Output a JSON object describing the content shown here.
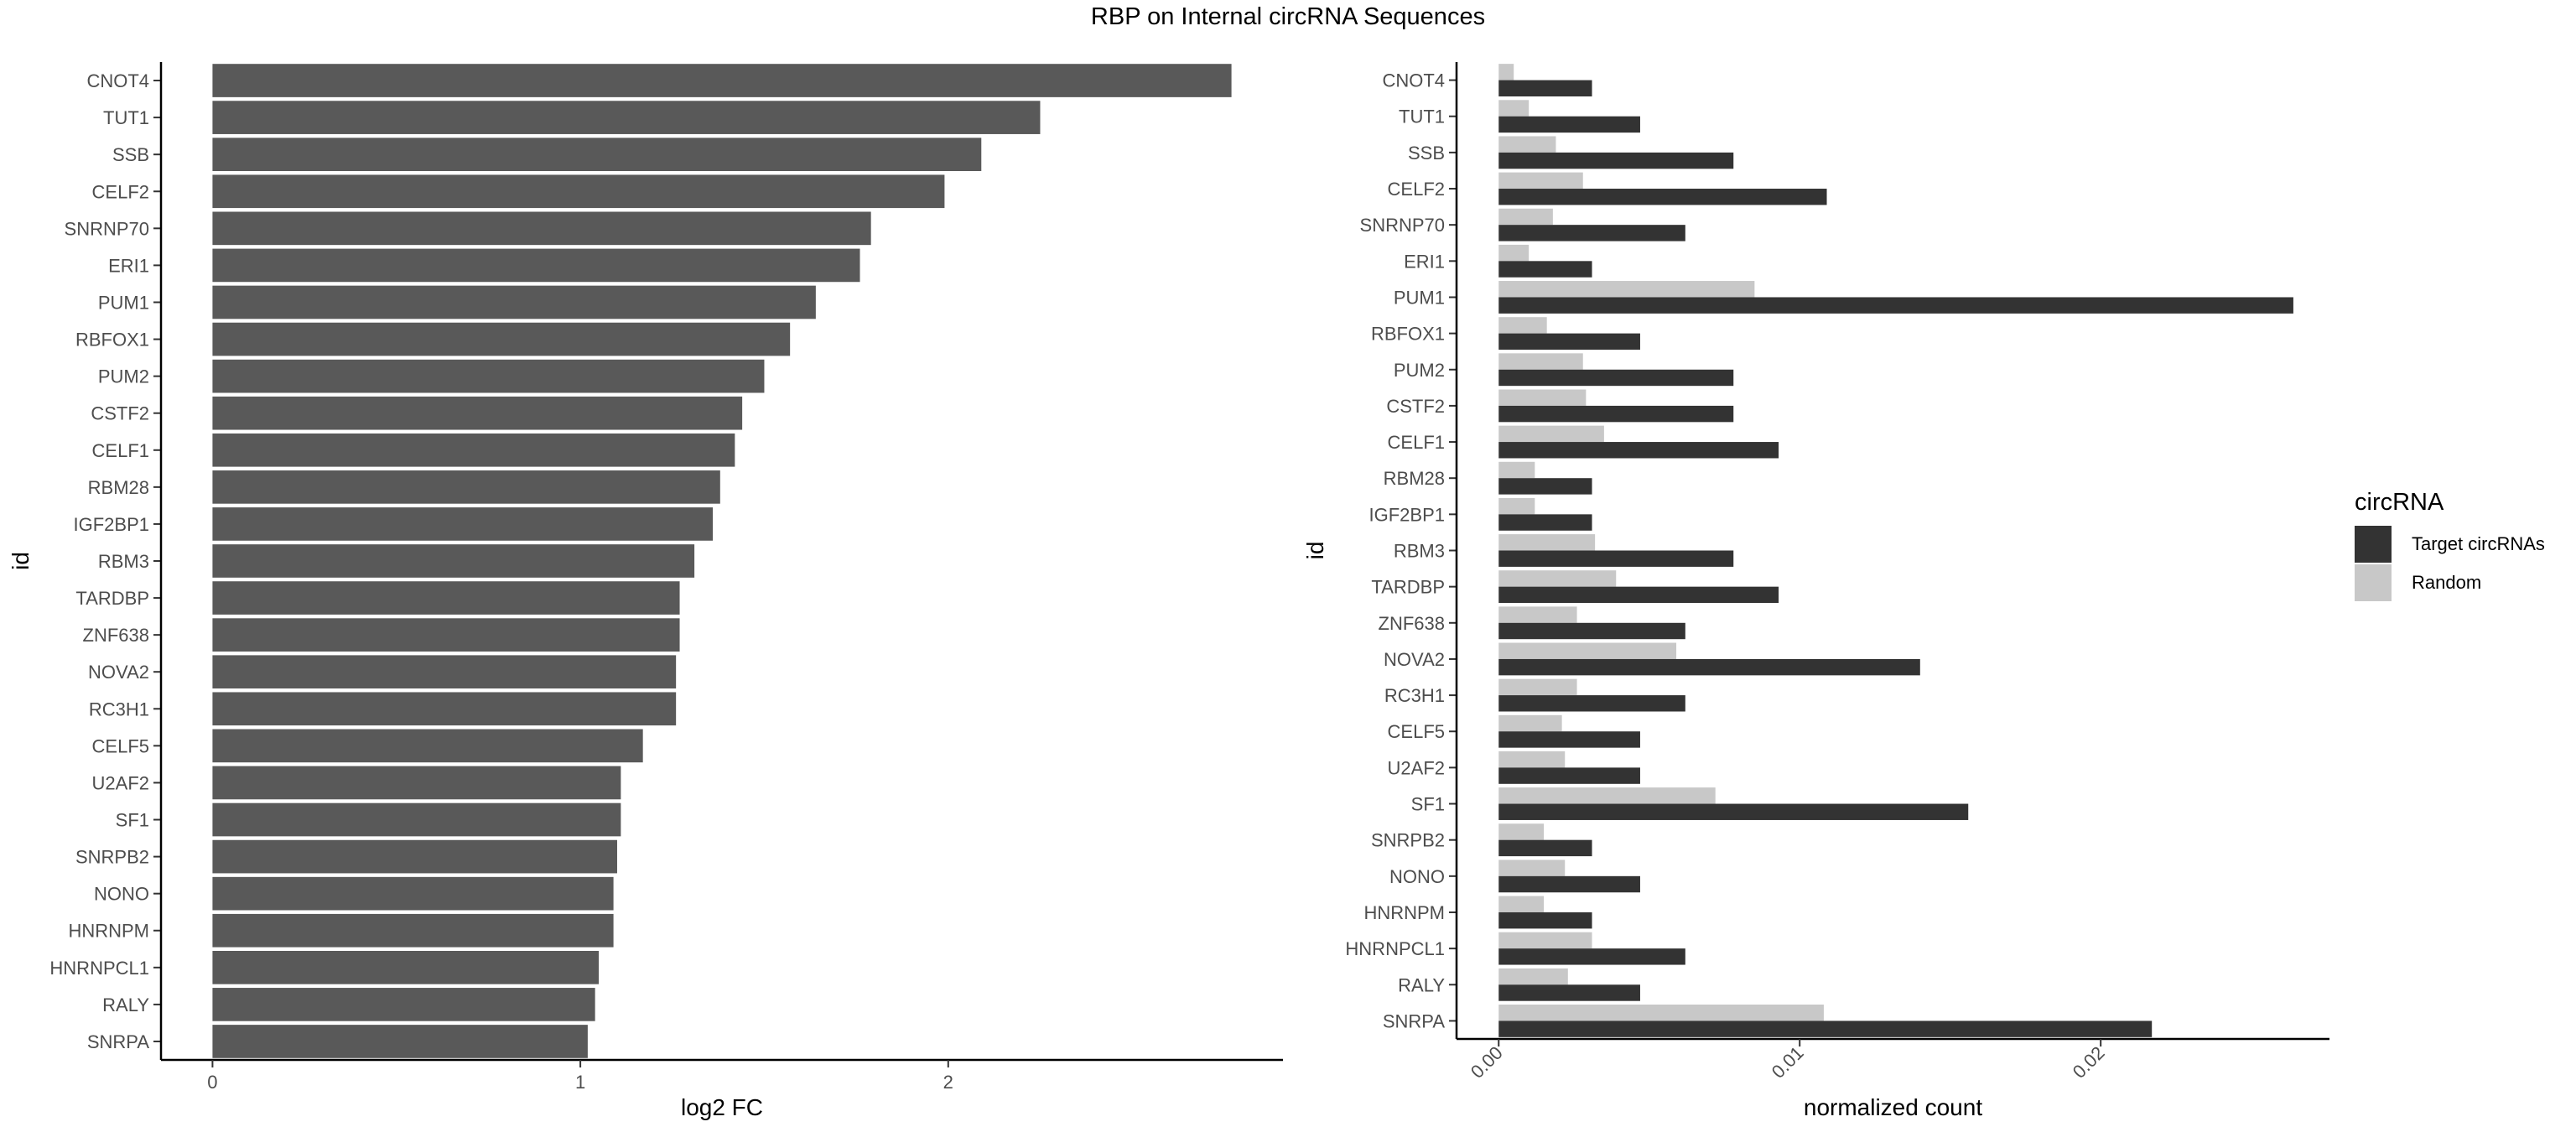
{
  "title": "RBP on Internal circRNA Sequences",
  "chart_data": [
    {
      "type": "bar",
      "orientation": "horizontal",
      "xlabel": "log2 FC",
      "ylabel": "id",
      "xlim": [
        -0.14,
        2.91
      ],
      "xticks": [
        {
          "value": 0,
          "label": "0"
        },
        {
          "value": 1,
          "label": "1"
        },
        {
          "value": 2,
          "label": "2"
        }
      ],
      "color": "#595959",
      "categories": [
        "CNOT4",
        "TUT1",
        "SSB",
        "CELF2",
        "SNRNP70",
        "ERI1",
        "PUM1",
        "RBFOX1",
        "PUM2",
        "CSTF2",
        "CELF1",
        "RBM28",
        "IGF2BP1",
        "RBM3",
        "TARDBP",
        "ZNF638",
        "NOVA2",
        "RC3H1",
        "CELF5",
        "U2AF2",
        "SF1",
        "SNRPB2",
        "NONO",
        "HNRNPM",
        "HNRNPCL1",
        "RALY",
        "SNRPA"
      ],
      "values": [
        2.77,
        2.25,
        2.09,
        1.99,
        1.79,
        1.76,
        1.64,
        1.57,
        1.5,
        1.44,
        1.42,
        1.38,
        1.36,
        1.31,
        1.27,
        1.27,
        1.26,
        1.26,
        1.17,
        1.11,
        1.11,
        1.1,
        1.09,
        1.09,
        1.05,
        1.04,
        1.02
      ]
    },
    {
      "type": "bar",
      "orientation": "horizontal",
      "grouped": true,
      "xlabel": "normalized count",
      "ylabel": "id",
      "xlim": [
        -0.0014,
        0.0276
      ],
      "xticks": [
        {
          "value": 0,
          "label": "0.00"
        },
        {
          "value": 0.01,
          "label": "0.01"
        },
        {
          "value": 0.02,
          "label": "0.02"
        }
      ],
      "categories": [
        "CNOT4",
        "TUT1",
        "SSB",
        "CELF2",
        "SNRNP70",
        "ERI1",
        "PUM1",
        "RBFOX1",
        "PUM2",
        "CSTF2",
        "CELF1",
        "RBM28",
        "IGF2BP1",
        "RBM3",
        "TARDBP",
        "ZNF638",
        "NOVA2",
        "RC3H1",
        "CELF5",
        "U2AF2",
        "SF1",
        "SNRPB2",
        "NONO",
        "HNRNPM",
        "HNRNPCL1",
        "RALY",
        "SNRPA"
      ],
      "series": [
        {
          "name": "Random",
          "color": "#c8c8c8",
          "values": [
            0.0005,
            0.001,
            0.0019,
            0.0028,
            0.0018,
            0.001,
            0.0085,
            0.0016,
            0.0028,
            0.0029,
            0.0035,
            0.0012,
            0.0012,
            0.0032,
            0.0039,
            0.0026,
            0.0059,
            0.0026,
            0.0021,
            0.0022,
            0.0072,
            0.0015,
            0.0022,
            0.0015,
            0.0031,
            0.0023,
            0.0108
          ]
        },
        {
          "name": "Target circRNAs",
          "color": "#333333",
          "values": [
            0.0031,
            0.0047,
            0.0078,
            0.0109,
            0.0062,
            0.0031,
            0.0264,
            0.0047,
            0.0078,
            0.0078,
            0.0093,
            0.0031,
            0.0031,
            0.0078,
            0.0093,
            0.0062,
            0.014,
            0.0062,
            0.0047,
            0.0047,
            0.0156,
            0.0031,
            0.0047,
            0.0031,
            0.0062,
            0.0047,
            0.0217
          ]
        }
      ]
    }
  ],
  "legend": {
    "title": "circRNA",
    "items": [
      {
        "label": "Target circRNAs",
        "color": "#333333"
      },
      {
        "label": "Random",
        "color": "#c8c8c8"
      }
    ]
  }
}
